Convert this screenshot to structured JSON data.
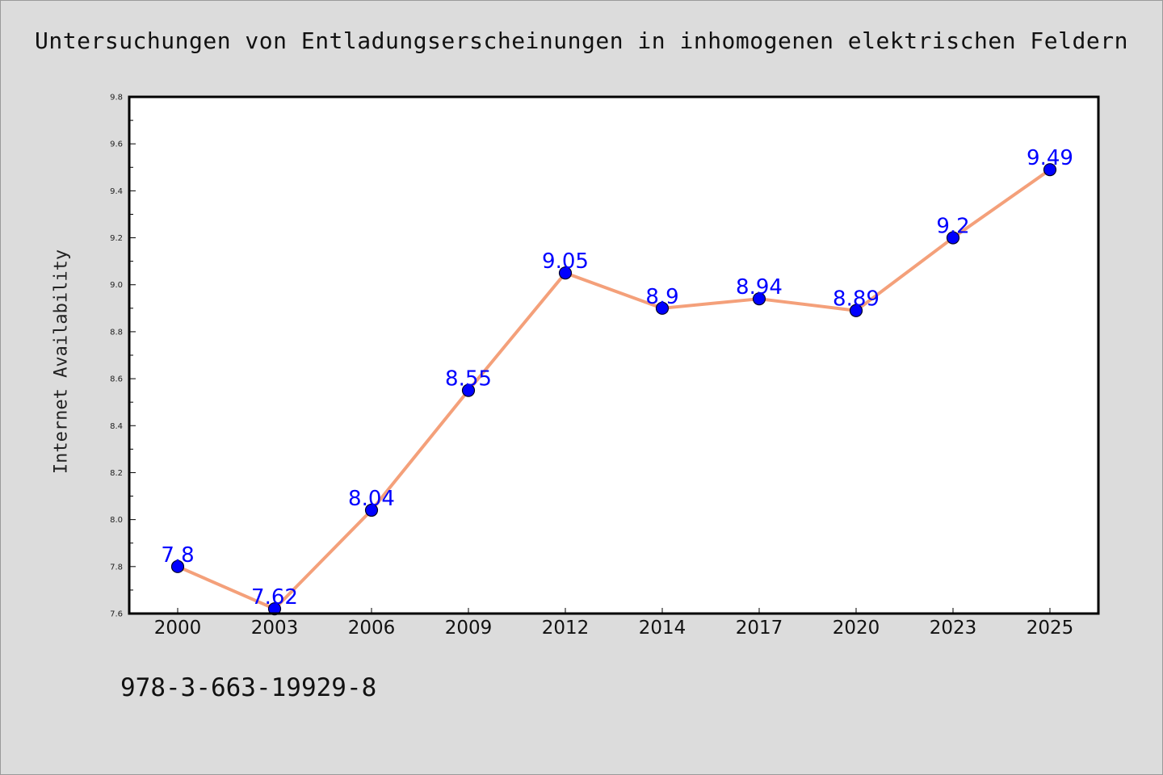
{
  "title": "Untersuchungen von Entladungserscheinungen in inhomogenen elektrischen Feldern",
  "isbn": "978-3-663-19929-8",
  "chart_data": {
    "type": "line",
    "title": "Untersuchungen von Entladungserscheinungen in inhomogenen elektrischen Feldern",
    "xlabel": "",
    "ylabel": "Internet Availability",
    "categories": [
      "2000",
      "2003",
      "2006",
      "2009",
      "2012",
      "2014",
      "2017",
      "2020",
      "2023",
      "2025"
    ],
    "series": [
      {
        "values": [
          7.8,
          7.62,
          8.04,
          8.55,
          9.05,
          8.9,
          8.94,
          8.89,
          9.2,
          9.49
        ],
        "data_labels": [
          "7.8",
          "7.62",
          "8.04",
          "8.55",
          "9.05",
          "8.9",
          "8.94",
          "8.89",
          "9.2",
          "9.49"
        ],
        "line_color": "#f4a07a",
        "marker_color": "#0000ff",
        "label_color": "#0000ff"
      }
    ],
    "ylim": [
      7.6,
      9.8
    ],
    "yticks": [
      "7.6",
      "7.8",
      "8.0",
      "8.2",
      "8.4",
      "8.6",
      "8.8",
      "9.0",
      "9.2",
      "9.4",
      "9.6",
      "9.8"
    ],
    "grid": false,
    "legend": "none"
  }
}
